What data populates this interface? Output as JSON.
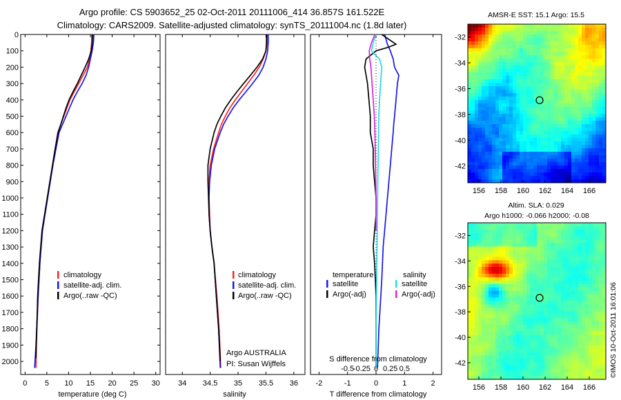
{
  "header": {
    "line1": "Argo profile: CS 5903652_25 02-Oct-2011 20111006_414 36.857S 161.522E",
    "line2": "Climatology: CARS2009. Satellite-adjusted climatology: synTS_20111004.nc (1.8d later)"
  },
  "colors": {
    "climatology": "#ff2020",
    "satellite": "#1515ee",
    "argo": "#000000",
    "satellite_s": "#22dddd",
    "argo_s": "#dd22dd"
  },
  "chart_data": [
    {
      "type": "line",
      "id": "temperature",
      "xlabel": "temperature (deg C)",
      "ylabel": "",
      "xlim": [
        -1,
        31
      ],
      "ylim": [
        2080,
        0
      ],
      "y_inverted": true,
      "xticks": [
        0,
        5,
        10,
        15,
        20,
        25,
        30
      ],
      "yticks": [
        0,
        100,
        200,
        300,
        400,
        500,
        600,
        700,
        800,
        900,
        1000,
        1100,
        1200,
        1300,
        1400,
        1500,
        1600,
        1700,
        1800,
        1900,
        2000
      ],
      "legend": [
        "climatology",
        "satellite-adj. clim.",
        "Argo(..raw -QC)"
      ],
      "series": [
        {
          "name": "climatology",
          "color": "#ff2020",
          "x": [
            15.3,
            15.3,
            15.1,
            14.8,
            14.3,
            13.3,
            12.3,
            11.3,
            10.3,
            9.6,
            8.9,
            8.2,
            7.5,
            6.9,
            6.3,
            5.7,
            5.1,
            4.5,
            3.9,
            3.4,
            3.0,
            2.6,
            2.5
          ],
          "y": [
            0,
            50,
            100,
            150,
            200,
            250,
            300,
            350,
            400,
            450,
            500,
            550,
            600,
            700,
            800,
            900,
            1000,
            1100,
            1200,
            1400,
            1600,
            1900,
            2040
          ]
        },
        {
          "name": "satellite-adj. clim.",
          "color": "#1515ee",
          "x": [
            15.8,
            15.7,
            15.4,
            15.0,
            14.6,
            14.0,
            13.1,
            12.0,
            11.0,
            10.2,
            9.4,
            8.6,
            7.8,
            7.1,
            6.4,
            5.8,
            5.2,
            4.6,
            4.0,
            3.4,
            3.0,
            2.5,
            2.2
          ],
          "y": [
            0,
            50,
            100,
            150,
            200,
            250,
            300,
            350,
            400,
            450,
            500,
            550,
            600,
            700,
            800,
            900,
            1000,
            1100,
            1200,
            1400,
            1600,
            1900,
            2040
          ]
        },
        {
          "name": "Argo(..raw -QC)",
          "color": "#000000",
          "x": [
            15.5,
            15.4,
            15.2,
            14.6,
            13.8,
            12.9,
            12.0,
            11.0,
            10.1,
            9.4,
            8.8,
            8.2,
            7.6,
            6.9,
            6.3,
            5.7,
            5.1,
            4.5,
            3.9,
            3.3,
            2.9,
            2.5
          ],
          "y": [
            0,
            50,
            100,
            150,
            200,
            250,
            300,
            350,
            400,
            450,
            500,
            550,
            600,
            700,
            800,
            900,
            1000,
            1100,
            1200,
            1400,
            1600,
            1980
          ]
        }
      ]
    },
    {
      "type": "line",
      "id": "salinity",
      "xlabel": "salinity",
      "xlim": [
        33.7,
        36.2
      ],
      "ylim": [
        2080,
        0
      ],
      "y_inverted": true,
      "xticks": [
        34,
        34.5,
        35,
        35.5,
        36
      ],
      "xticklabels": [
        "34",
        "34.5",
        "35",
        "35.5",
        "36"
      ],
      "legend": [
        "climatology",
        "satellite-adj. clim.",
        "Argo(..raw -QC)"
      ],
      "annotation": [
        "Argo AUSTRALIA",
        "PI: Susan Wijffels"
      ],
      "series": [
        {
          "name": "climatology",
          "color": "#ff2020",
          "x": [
            35.52,
            35.52,
            35.5,
            35.45,
            35.38,
            35.28,
            35.17,
            35.06,
            34.95,
            34.85,
            34.77,
            34.7,
            34.65,
            34.56,
            34.5,
            34.48,
            34.48,
            34.49,
            34.5,
            34.53,
            34.57,
            34.62,
            34.66,
            34.69
          ],
          "y": [
            0,
            50,
            100,
            150,
            200,
            250,
            300,
            350,
            400,
            450,
            500,
            550,
            600,
            700,
            800,
            900,
            1000,
            1100,
            1200,
            1300,
            1400,
            1600,
            1800,
            2040
          ]
        },
        {
          "name": "satellite-adj. clim.",
          "color": "#1515ee",
          "x": [
            35.54,
            35.54,
            35.53,
            35.5,
            35.45,
            35.37,
            35.26,
            35.14,
            35.02,
            34.91,
            34.82,
            34.74,
            34.68,
            34.58,
            34.52,
            34.49,
            34.48,
            34.48,
            34.5,
            34.53,
            34.57,
            34.61,
            34.65,
            34.68
          ],
          "y": [
            0,
            50,
            100,
            150,
            200,
            250,
            300,
            350,
            400,
            450,
            500,
            550,
            600,
            700,
            800,
            900,
            1000,
            1100,
            1200,
            1300,
            1400,
            1600,
            1800,
            2040
          ]
        },
        {
          "name": "Argo(..raw -QC)",
          "color": "#000000",
          "x": [
            35.51,
            35.51,
            35.5,
            35.44,
            35.34,
            35.22,
            35.1,
            34.98,
            34.87,
            34.77,
            34.69,
            34.62,
            34.57,
            34.5,
            34.46,
            34.46,
            34.47,
            34.48,
            34.5,
            34.53,
            34.57,
            34.61,
            34.65,
            34.68
          ],
          "y": [
            0,
            50,
            100,
            150,
            200,
            250,
            300,
            350,
            400,
            450,
            500,
            550,
            600,
            700,
            800,
            900,
            1000,
            1100,
            1200,
            1300,
            1400,
            1600,
            1800,
            2000
          ]
        }
      ]
    },
    {
      "type": "line",
      "id": "differences",
      "xlabel": "T difference from climatology",
      "xlabel_top": "S difference from climatology",
      "xlim": [
        -2.3,
        2.3
      ],
      "ylim": [
        2080,
        0
      ],
      "y_inverted": true,
      "xticks": [
        -2,
        -1,
        0,
        1,
        2
      ],
      "xticks_top": [
        -0.5,
        -0.25,
        0,
        0.25,
        0.5
      ],
      "xticklabels_top": [
        "-0.5",
        "-0.25",
        "0",
        "0.25",
        "0.5"
      ],
      "legend_titles": [
        "temperature",
        "salinity"
      ],
      "legend": [
        "satellite",
        "Argo(-adj)",
        "satellite",
        "Argo(-adj)"
      ],
      "series": [
        {
          "name": "T satellite",
          "color": "#1515ee",
          "x": [
            0.3,
            0.4,
            0.5,
            0.6,
            0.65,
            0.8,
            0.75,
            0.7,
            0.65,
            0.62,
            0.6,
            0.55,
            0.5,
            0.45,
            0.4,
            0.35,
            0.3,
            0.25,
            0.2,
            0.1,
            0.05
          ],
          "y": [
            0,
            60,
            100,
            150,
            200,
            250,
            300,
            400,
            500,
            550,
            600,
            700,
            800,
            900,
            1000,
            1100,
            1200,
            1300,
            1500,
            1800,
            2040
          ]
        },
        {
          "name": "T Argo(-adj)",
          "color": "#000000",
          "x": [
            0.2,
            0.7,
            0.4,
            0.0,
            -0.35,
            -0.4,
            -0.3,
            -0.25,
            -0.2,
            -0.2,
            -0.1,
            -0.1,
            -0.05,
            0.0,
            0.0,
            -0.05,
            -0.1,
            -0.05,
            0.0,
            0.0,
            0.0
          ],
          "y": [
            0,
            60,
            80,
            100,
            150,
            200,
            300,
            400,
            500,
            600,
            700,
            800,
            900,
            1000,
            1100,
            1200,
            1300,
            1400,
            1600,
            1800,
            2040
          ]
        },
        {
          "name": "S satellite",
          "color": "#22dddd",
          "x": [
            0.0,
            -0.05,
            -0.08,
            0.06,
            0.1,
            0.08,
            0.06,
            0.05,
            0.04,
            0.03,
            0.02,
            0.01,
            0.0,
            0.0
          ],
          "y": [
            0,
            50,
            100,
            150,
            200,
            300,
            400,
            500,
            700,
            900,
            1200,
            1500,
            1800,
            2040
          ]
        },
        {
          "name": "S Argo(-adj)",
          "color": "#dd22dd",
          "x": [
            -0.02,
            -0.08,
            -0.12,
            -0.11,
            -0.09,
            -0.07,
            -0.05,
            -0.03,
            -0.02,
            -0.01,
            0.0,
            0.0
          ],
          "y": [
            0,
            50,
            100,
            150,
            200,
            300,
            400,
            500,
            600,
            800,
            1000,
            1200
          ]
        }
      ]
    },
    {
      "type": "heatmap",
      "id": "sst-map",
      "title": "AMSR-E SST: 15.1 Argo: 15.5",
      "xlim": [
        155,
        167.5
      ],
      "ylim": [
        -43.3,
        -31
      ],
      "xticks": [
        156,
        158,
        160,
        162,
        164,
        166
      ],
      "yticks": [
        -32,
        -34,
        -36,
        -38,
        -40,
        -42
      ],
      "profile_marker": {
        "lon": 161.5,
        "lat": -36.9
      }
    },
    {
      "type": "heatmap",
      "id": "sla-map",
      "title": "Altim. SLA: 0.029",
      "subtitle": "Argo h1000: -0.066 h2000: -0.08",
      "xlim": [
        155,
        167.5
      ],
      "ylim": [
        -43.3,
        -31
      ],
      "xticks": [
        156,
        158,
        160,
        162,
        164,
        166
      ],
      "yticks": [
        -32,
        -34,
        -36,
        -38,
        -40,
        -42
      ],
      "profile_marker": {
        "lon": 161.5,
        "lat": -36.9
      }
    }
  ],
  "footer": {
    "stamp": "©IMOS 10-Oct-2011 16:01:06"
  }
}
